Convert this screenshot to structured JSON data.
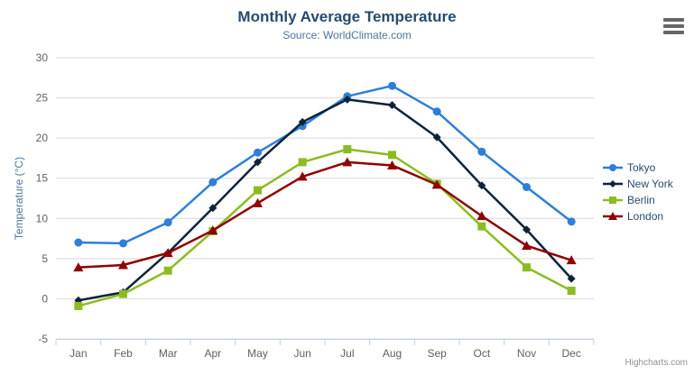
{
  "chart_data": {
    "type": "line",
    "title": "Monthly Average Temperature",
    "subtitle": "Source: WorldClimate.com",
    "xlabel": "",
    "ylabel": "Temperature (°C)",
    "categories": [
      "Jan",
      "Feb",
      "Mar",
      "Apr",
      "May",
      "Jun",
      "Jul",
      "Aug",
      "Sep",
      "Oct",
      "Nov",
      "Dec"
    ],
    "series": [
      {
        "name": "Tokyo",
        "color": "#2f7ed8",
        "marker": "circle",
        "values": [
          7.0,
          6.9,
          9.5,
          14.5,
          18.2,
          21.5,
          25.2,
          26.5,
          23.3,
          18.3,
          13.9,
          9.6
        ]
      },
      {
        "name": "New York",
        "color": "#0d233a",
        "marker": "diamond",
        "values": [
          -0.2,
          0.8,
          5.7,
          11.3,
          17.0,
          22.0,
          24.8,
          24.1,
          20.1,
          14.1,
          8.6,
          2.5
        ]
      },
      {
        "name": "Berlin",
        "color": "#8bbc21",
        "marker": "square",
        "values": [
          -0.9,
          0.6,
          3.5,
          8.4,
          13.5,
          17.0,
          18.6,
          17.9,
          14.3,
          9.0,
          3.9,
          1.0
        ]
      },
      {
        "name": "London",
        "color": "#910000",
        "marker": "triangle",
        "values": [
          3.9,
          4.2,
          5.7,
          8.5,
          11.9,
          15.2,
          17.0,
          16.6,
          14.2,
          10.3,
          6.6,
          4.8
        ]
      }
    ],
    "ylim": [
      -5,
      30
    ],
    "yticks": [
      -5,
      0,
      5,
      10,
      15,
      20,
      25,
      30
    ],
    "grid": "horizontal",
    "legend_position": "right",
    "colors": {
      "grid_line": "#d8d8d8",
      "axis_line": "#c0d0e0",
      "axis_label": "#606060",
      "title_text": "#274b6d",
      "subtitle_text": "#4d759e",
      "credit_text": "#909090"
    },
    "credit": "Highcharts.com"
  },
  "icons": {
    "context_menu": "hamburger-icon"
  }
}
